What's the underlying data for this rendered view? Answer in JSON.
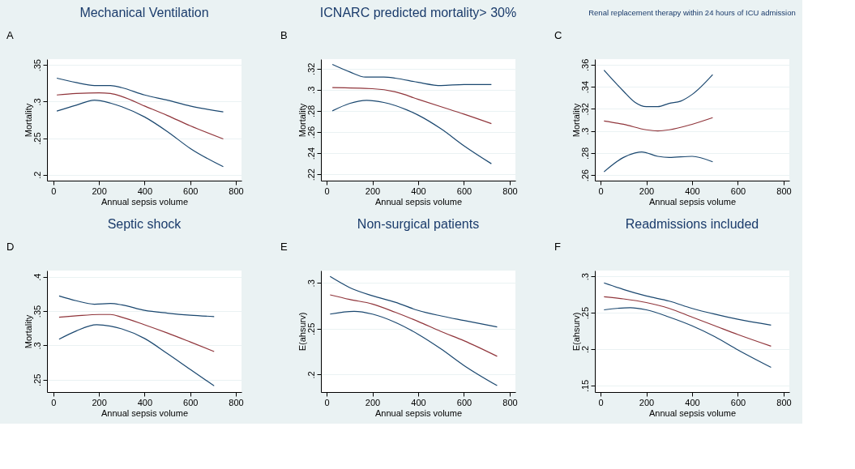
{
  "chart_data": [
    {
      "type": "line",
      "title": "Mechanical Ventilation",
      "annotations": [
        "A"
      ],
      "xlabel": "Annual sepsis volume",
      "ylabel": "Mortality",
      "xlim": [
        -28,
        825
      ],
      "xticks": [
        0,
        200,
        400,
        600,
        800
      ],
      "ylim": [
        0.192,
        0.358
      ],
      "yticks": [
        {
          "value": 0.2,
          "label": ".2"
        },
        {
          "value": 0.25,
          "label": ".25"
        },
        {
          "value": 0.3,
          "label": ".3"
        },
        {
          "value": 0.35,
          "label": ".35"
        }
      ],
      "grid": "y",
      "series": [
        {
          "color": "#1a476f",
          "x": [
            15,
            100,
            180,
            250,
            300,
            400,
            500,
            600,
            745
          ],
          "values": [
            0.332,
            0.326,
            0.322,
            0.322,
            0.319,
            0.309,
            0.302,
            0.294,
            0.286
          ]
        },
        {
          "color": "#90353b",
          "x": [
            15,
            100,
            200,
            250,
            300,
            400,
            500,
            600,
            745
          ],
          "values": [
            0.309,
            0.311,
            0.312,
            0.311,
            0.307,
            0.294,
            0.281,
            0.267,
            0.249
          ]
        },
        {
          "color": "#1a476f",
          "x": [
            15,
            100,
            180,
            250,
            300,
            400,
            500,
            600,
            745
          ],
          "values": [
            0.287,
            0.295,
            0.302,
            0.298,
            0.293,
            0.279,
            0.259,
            0.236,
            0.211
          ]
        }
      ]
    },
    {
      "type": "line",
      "title": "ICNARC predicted mortality> 30%",
      "annotations": [
        "B"
      ],
      "xlabel": "Annual sepsis volume",
      "ylabel": "Mortality",
      "xlim": [
        -25,
        825
      ],
      "xticks": [
        0,
        200,
        400,
        600,
        800
      ],
      "ylim": [
        0.214,
        0.329
      ],
      "yticks": [
        {
          "value": 0.22,
          "label": ".22"
        },
        {
          "value": 0.24,
          "label": ".24"
        },
        {
          "value": 0.26,
          "label": ".26"
        },
        {
          "value": 0.28,
          "label": ".28"
        },
        {
          "value": 0.3,
          "label": ".3"
        },
        {
          "value": 0.32,
          "label": ".32"
        }
      ],
      "grid": "y",
      "series": [
        {
          "color": "#1a476f",
          "x": [
            25,
            100,
            170,
            250,
            300,
            400,
            500,
            600,
            720
          ],
          "values": [
            0.324,
            0.317,
            0.312,
            0.312,
            0.311,
            0.307,
            0.304,
            0.305,
            0.305
          ]
        },
        {
          "color": "#90353b",
          "x": [
            25,
            200,
            300,
            400,
            500,
            600,
            720
          ],
          "values": [
            0.302,
            0.301,
            0.298,
            0.291,
            0.284,
            0.277,
            0.268
          ]
        },
        {
          "color": "#1a476f",
          "x": [
            25,
            100,
            175,
            250,
            350,
            400,
            500,
            600,
            720
          ],
          "values": [
            0.28,
            0.287,
            0.29,
            0.288,
            0.281,
            0.276,
            0.263,
            0.247,
            0.23
          ]
        }
      ]
    },
    {
      "type": "line",
      "title": "Renal replacement therapy within 24 hours of ICU admission",
      "annotations": [
        "C"
      ],
      "xlabel": "Annual sepsis volume",
      "ylabel": "Mortality",
      "xlim": [
        -25,
        825
      ],
      "xticks": [
        0,
        200,
        400,
        600,
        800
      ],
      "ylim": [
        0.255,
        0.365
      ],
      "yticks": [
        {
          "value": 0.26,
          "label": ".26"
        },
        {
          "value": 0.28,
          "label": ".28"
        },
        {
          "value": 0.3,
          "label": ".3"
        },
        {
          "value": 0.32,
          "label": ".32"
        },
        {
          "value": 0.34,
          "label": ".34"
        },
        {
          "value": 0.36,
          "label": ".36"
        }
      ],
      "grid": "y",
      "series": [
        {
          "color": "#1a476f",
          "x": [
            15,
            100,
            150,
            200,
            250,
            300,
            350,
            400,
            490
          ],
          "values": [
            0.355,
            0.336,
            0.326,
            0.322,
            0.322,
            0.325,
            0.327,
            0.333,
            0.351
          ]
        },
        {
          "color": "#90353b",
          "x": [
            15,
            100,
            200,
            250,
            300,
            400,
            490
          ],
          "values": [
            0.309,
            0.306,
            0.301,
            0.3,
            0.301,
            0.306,
            0.312
          ]
        },
        {
          "color": "#1a476f",
          "x": [
            15,
            100,
            150,
            180,
            250,
            300,
            400,
            490
          ],
          "values": [
            0.263,
            0.276,
            0.28,
            0.281,
            0.277,
            0.276,
            0.277,
            0.272
          ]
        }
      ]
    },
    {
      "type": "line",
      "title": "Septic shock",
      "annotations": [
        "D"
      ],
      "xlabel": "Annual sepsis volume",
      "ylabel": "Mortality",
      "xlim": [
        -28,
        825
      ],
      "xticks": [
        0,
        200,
        400,
        600,
        800
      ],
      "ylim": [
        0.232,
        0.409
      ],
      "yticks": [
        {
          "value": 0.25,
          "label": ".25"
        },
        {
          "value": 0.3,
          "label": ".3"
        },
        {
          "value": 0.35,
          "label": ".35"
        },
        {
          "value": 0.4,
          "label": ".4"
        }
      ],
      "grid": "y",
      "series": [
        {
          "color": "#1a476f",
          "x": [
            25,
            100,
            180,
            250,
            300,
            400,
            500,
            600,
            705
          ],
          "values": [
            0.372,
            0.365,
            0.36,
            0.361,
            0.359,
            0.351,
            0.347,
            0.344,
            0.342
          ]
        },
        {
          "color": "#90353b",
          "x": [
            25,
            100,
            200,
            250,
            300,
            400,
            500,
            600,
            705
          ],
          "values": [
            0.341,
            0.343,
            0.345,
            0.345,
            0.341,
            0.33,
            0.318,
            0.305,
            0.291
          ]
        },
        {
          "color": "#1a476f",
          "x": [
            25,
            100,
            190,
            250,
            300,
            400,
            500,
            600,
            705
          ],
          "values": [
            0.309,
            0.321,
            0.33,
            0.328,
            0.324,
            0.31,
            0.288,
            0.265,
            0.241
          ]
        }
      ]
    },
    {
      "type": "line",
      "title": "Non-surgical patients",
      "annotations": [
        "E"
      ],
      "xlabel": "Annual sepsis volume",
      "ylabel": "E(ahsurv)",
      "xlim": [
        -25,
        825
      ],
      "xticks": [
        0,
        200,
        400,
        600,
        800
      ],
      "ylim": [
        0.181,
        0.3135
      ],
      "yticks": [
        {
          "value": 0.2,
          "label": ".2"
        },
        {
          "value": 0.25,
          "label": ".25"
        },
        {
          "value": 0.3,
          "label": ".3"
        }
      ],
      "grid": "y",
      "series": [
        {
          "color": "#1a476f",
          "x": [
            15,
            100,
            200,
            300,
            400,
            500,
            600,
            745
          ],
          "values": [
            0.307,
            0.295,
            0.286,
            0.279,
            0.27,
            0.264,
            0.259,
            0.252
          ]
        },
        {
          "color": "#90353b",
          "x": [
            15,
            100,
            200,
            300,
            400,
            500,
            600,
            745
          ],
          "values": [
            0.287,
            0.282,
            0.277,
            0.268,
            0.258,
            0.247,
            0.237,
            0.22
          ]
        },
        {
          "color": "#1a476f",
          "x": [
            15,
            120,
            200,
            300,
            400,
            500,
            600,
            745
          ],
          "values": [
            0.266,
            0.269,
            0.266,
            0.257,
            0.244,
            0.228,
            0.21,
            0.188
          ]
        }
      ]
    },
    {
      "type": "line",
      "title": "Readmissions included",
      "annotations": [
        "F"
      ],
      "xlabel": "Annual sepsis volume",
      "ylabel": "E(ahsurv)",
      "xlim": [
        -25,
        825
      ],
      "xticks": [
        0,
        200,
        400,
        600,
        800
      ],
      "ylim": [
        0.141,
        0.308
      ],
      "yticks": [
        {
          "value": 0.15,
          "label": ".15"
        },
        {
          "value": 0.2,
          "label": ".2"
        },
        {
          "value": 0.25,
          "label": ".25"
        },
        {
          "value": 0.3,
          "label": ".3"
        }
      ],
      "grid": "y",
      "series": [
        {
          "color": "#1a476f",
          "x": [
            15,
            100,
            200,
            300,
            400,
            500,
            600,
            745
          ],
          "values": [
            0.291,
            0.282,
            0.273,
            0.266,
            0.256,
            0.248,
            0.241,
            0.233
          ]
        },
        {
          "color": "#90353b",
          "x": [
            15,
            100,
            200,
            300,
            400,
            500,
            600,
            745
          ],
          "values": [
            0.272,
            0.269,
            0.264,
            0.256,
            0.244,
            0.232,
            0.22,
            0.204
          ]
        },
        {
          "color": "#1a476f",
          "x": [
            15,
            130,
            200,
            300,
            400,
            500,
            600,
            745
          ],
          "values": [
            0.254,
            0.257,
            0.254,
            0.244,
            0.232,
            0.217,
            0.199,
            0.175
          ]
        }
      ]
    }
  ]
}
